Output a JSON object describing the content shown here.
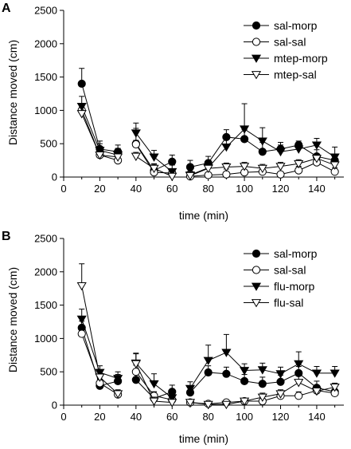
{
  "chart_data": [
    {
      "type": "line",
      "panel_label": "A",
      "xlabel": "time (min)",
      "ylabel": "Distance moved (cm)",
      "xlim": [
        0,
        155
      ],
      "ylim": [
        0,
        2500
      ],
      "xticks": [
        0,
        20,
        40,
        60,
        80,
        100,
        120,
        140
      ],
      "yticks": [
        0,
        500,
        1000,
        1500,
        2000,
        2500
      ],
      "legend_position": "top-right",
      "series": [
        {
          "name": "sal-morp",
          "marker": "circle-filled",
          "segments": [
            [
              [
                10,
                1400,
                230
              ],
              [
                20,
                420,
                120
              ],
              [
                30,
                380,
                100
              ]
            ],
            [
              [
                40,
                500,
                230
              ],
              [
                50,
                100,
                100
              ],
              [
                60,
                230,
                100
              ]
            ],
            [
              [
                70,
                150,
                100
              ],
              [
                80,
                210,
                100
              ],
              [
                90,
                600,
                110
              ],
              [
                100,
                570,
                140
              ],
              [
                110,
                380,
                140
              ],
              [
                120,
                420,
                100
              ],
              [
                130,
                480,
                60
              ],
              [
                140,
                310,
                100
              ],
              [
                150,
                250,
                60
              ]
            ]
          ]
        },
        {
          "name": "sal-sal",
          "marker": "circle-open",
          "segments": [
            [
              [
                10,
                1000,
                100
              ],
              [
                20,
                330,
                60
              ],
              [
                30,
                250,
                60
              ]
            ],
            [
              [
                40,
                490,
                60
              ],
              [
                50,
                70,
                60
              ],
              [
                60,
                60,
                30
              ]
            ],
            [
              [
                70,
                10,
                20
              ],
              [
                80,
                30,
                30
              ],
              [
                90,
                40,
                80
              ],
              [
                100,
                70,
                100
              ],
              [
                110,
                80,
                60
              ],
              [
                120,
                40,
                30
              ],
              [
                130,
                100,
                60
              ],
              [
                140,
                220,
                100
              ],
              [
                150,
                80,
                60
              ]
            ]
          ]
        },
        {
          "name": "mtep-morp",
          "marker": "triangle-down-filled",
          "segments": [
            [
              [
                10,
                1060,
                150
              ],
              [
                20,
                400,
                100
              ],
              [
                30,
                330,
                100
              ]
            ],
            [
              [
                40,
                660,
                150
              ],
              [
                50,
                300,
                100
              ],
              [
                60,
                80,
                100
              ]
            ],
            [
              [
                70,
                30,
                60
              ],
              [
                80,
                140,
                100
              ],
              [
                90,
                450,
                150
              ],
              [
                100,
                720,
                380
              ],
              [
                110,
                540,
                200
              ],
              [
                120,
                380,
                100
              ],
              [
                130,
                420,
                100
              ],
              [
                140,
                480,
                100
              ],
              [
                150,
                300,
                150
              ]
            ]
          ]
        },
        {
          "name": "mtep-sal",
          "marker": "triangle-down-open",
          "segments": [
            [
              [
                10,
                950,
                100
              ],
              [
                20,
                330,
                60
              ],
              [
                30,
                300,
                60
              ]
            ],
            [
              [
                40,
                310,
                60
              ],
              [
                50,
                130,
                60
              ],
              [
                60,
                10,
                30
              ]
            ],
            [
              [
                70,
                20,
                30
              ],
              [
                80,
                130,
                60
              ],
              [
                90,
                150,
                60
              ],
              [
                100,
                160,
                60
              ],
              [
                110,
                130,
                60
              ],
              [
                120,
                160,
                60
              ],
              [
                130,
                200,
                60
              ],
              [
                140,
                280,
                60
              ],
              [
                150,
                180,
                60
              ]
            ]
          ]
        }
      ]
    },
    {
      "type": "line",
      "panel_label": "B",
      "xlabel": "time (min)",
      "ylabel": "Distance moved (cm)",
      "xlim": [
        0,
        155
      ],
      "ylim": [
        0,
        2500
      ],
      "xticks": [
        0,
        20,
        40,
        60,
        80,
        100,
        120,
        140
      ],
      "yticks": [
        0,
        500,
        1000,
        1500,
        2000,
        2500
      ],
      "legend_position": "top-right",
      "series": [
        {
          "name": "sal-morp",
          "marker": "circle-filled",
          "segments": [
            [
              [
                10,
                1160,
                100
              ],
              [
                20,
                290,
                100
              ],
              [
                30,
                360,
                100
              ]
            ],
            [
              [
                40,
                380,
                100
              ],
              [
                50,
                100,
                100
              ],
              [
                60,
                200,
                100
              ]
            ],
            [
              [
                70,
                190,
                100
              ],
              [
                80,
                490,
                100
              ],
              [
                90,
                470,
                100
              ],
              [
                100,
                360,
                100
              ],
              [
                110,
                320,
                100
              ],
              [
                120,
                350,
                100
              ],
              [
                130,
                480,
                100
              ],
              [
                140,
                260,
                100
              ],
              [
                150,
                200,
                100
              ]
            ]
          ]
        },
        {
          "name": "sal-sal",
          "marker": "circle-open",
          "segments": [
            [
              [
                10,
                1070,
                100
              ],
              [
                20,
                330,
                60
              ],
              [
                30,
                160,
                60
              ]
            ],
            [
              [
                40,
                500,
                100
              ],
              [
                50,
                140,
                60
              ],
              [
                60,
                80,
                60
              ]
            ],
            [
              [
                70,
                40,
                30
              ],
              [
                80,
                20,
                30
              ],
              [
                90,
                40,
                30
              ],
              [
                100,
                60,
                30
              ],
              [
                110,
                60,
                30
              ],
              [
                120,
                140,
                60
              ],
              [
                130,
                140,
                60
              ],
              [
                140,
                220,
                60
              ],
              [
                150,
                180,
                60
              ]
            ]
          ]
        },
        {
          "name": "flu-morp",
          "marker": "triangle-down-filled",
          "segments": [
            [
              [
                10,
                1290,
                150
              ],
              [
                20,
                490,
                100
              ],
              [
                30,
                400,
                100
              ]
            ],
            [
              [
                40,
                630,
                150
              ],
              [
                50,
                320,
                150
              ],
              [
                60,
                110,
                100
              ]
            ],
            [
              [
                70,
                250,
                100
              ],
              [
                80,
                670,
                230
              ],
              [
                90,
                790,
                270
              ],
              [
                100,
                520,
                100
              ],
              [
                110,
                530,
                100
              ],
              [
                120,
                470,
                100
              ],
              [
                130,
                620,
                180
              ],
              [
                140,
                480,
                100
              ],
              [
                150,
                480,
                100
              ]
            ]
          ]
        },
        {
          "name": "flu-sal",
          "marker": "triangle-down-open",
          "segments": [
            [
              [
                10,
                1790,
                330
              ],
              [
                20,
                420,
                100
              ],
              [
                30,
                170,
                60
              ]
            ],
            [
              [
                40,
                620,
                150
              ],
              [
                50,
                60,
                60
              ],
              [
                60,
                40,
                30
              ]
            ],
            [
              [
                70,
                40,
                30
              ],
              [
                80,
                10,
                30
              ],
              [
                90,
                10,
                30
              ],
              [
                100,
                60,
                30
              ],
              [
                110,
                120,
                60
              ],
              [
                120,
                170,
                60
              ],
              [
                130,
                340,
                100
              ],
              [
                140,
                210,
                60
              ],
              [
                150,
                270,
                60
              ]
            ]
          ]
        }
      ]
    }
  ]
}
